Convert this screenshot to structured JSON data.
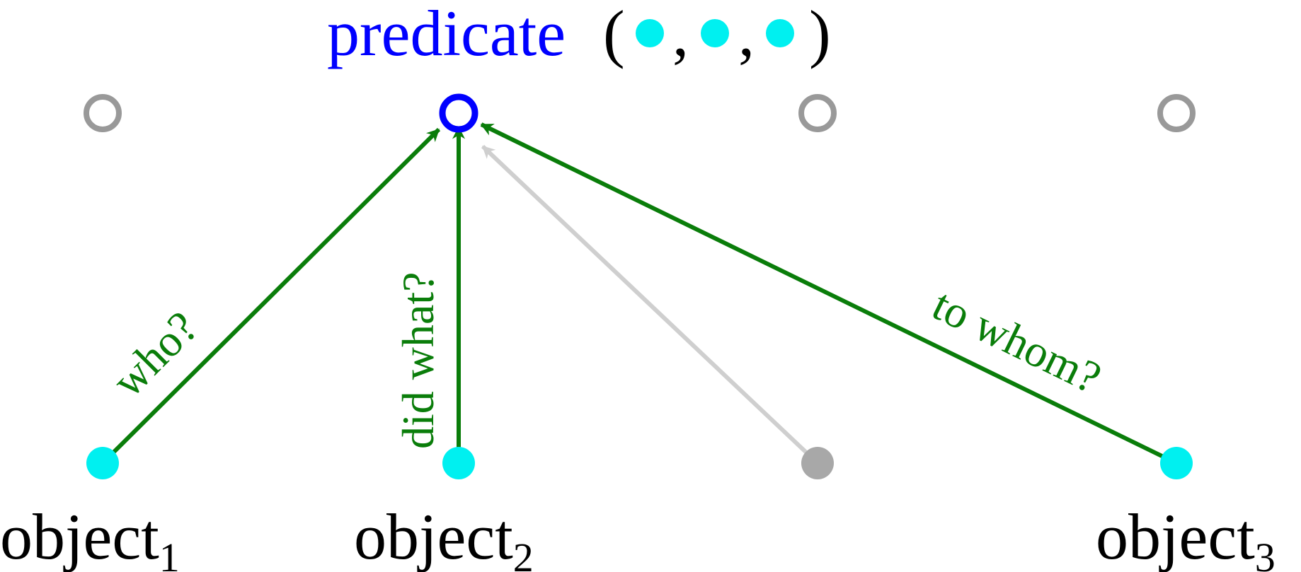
{
  "title": {
    "predicate": "predicate",
    "open_paren": "(",
    "comma": ",",
    "close_paren": ")"
  },
  "edges": {
    "who": "who?",
    "did_what": "did what?",
    "to_whom": "to whom?"
  },
  "objects": [
    {
      "base": "object",
      "sub": "1"
    },
    {
      "base": "object",
      "sub": "2"
    },
    {
      "base": "object",
      "sub": "3"
    }
  ],
  "colors": {
    "predicate_text": "#0000ff",
    "active_edge": "#0a7d0a",
    "inactive_edge": "#cfcfcf",
    "object_node": "#00f0f0",
    "inactive_node": "#a8a8a8",
    "predicate_node": "#0000ff",
    "inactive_ring": "#999999"
  }
}
